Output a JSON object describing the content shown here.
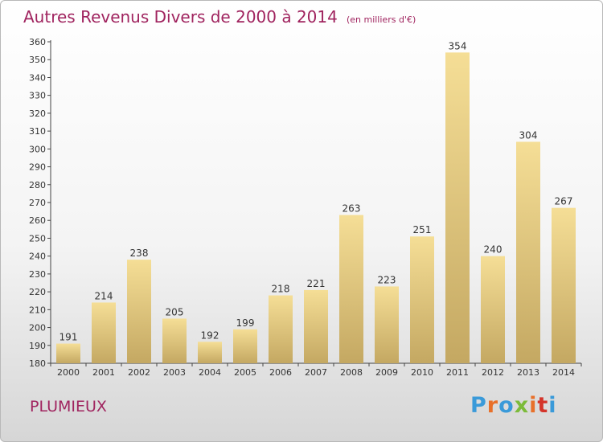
{
  "chart_data": {
    "type": "bar",
    "title": "Autres Revenus Divers de 2000 à 2014",
    "subtitle": "(en milliers d'€)",
    "categories": [
      "2000",
      "2001",
      "2002",
      "2003",
      "2004",
      "2005",
      "2006",
      "2007",
      "2008",
      "2009",
      "2010",
      "2011",
      "2012",
      "2013",
      "2014"
    ],
    "values": [
      191,
      214,
      238,
      205,
      192,
      199,
      218,
      221,
      263,
      223,
      251,
      354,
      240,
      304,
      267
    ],
    "ylim": [
      180,
      360
    ],
    "ytick_step": 10,
    "grid": false,
    "bar_color_top": "#f5de96",
    "bar_color_bottom": "#c4a862"
  },
  "footer": {
    "town": "PLUMIEUX",
    "logo_text": "Proxiti"
  },
  "colors": {
    "title": "#a0245f",
    "logo": [
      "#3a9ad9",
      "#e8702a",
      "#3a9ad9",
      "#7cbb3a",
      "#e8702a",
      "#d4342a",
      "#3a9ad9"
    ]
  }
}
